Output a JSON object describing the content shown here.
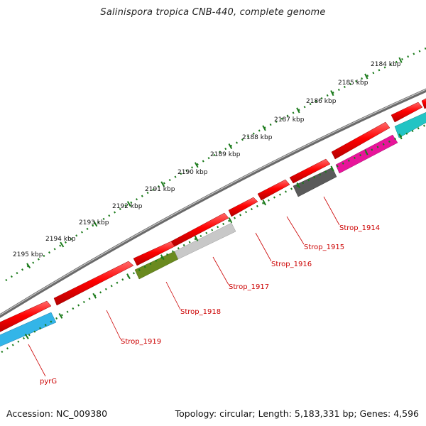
{
  "title": "Salinispora tropica CNB-440, complete genome",
  "footer": {
    "accession": "Accession: NC_009380",
    "summary": "Topology: circular; Length: 5,183,331 bp; Genes: 4,596"
  },
  "ruler": {
    "ticks": [
      "2184 kbp",
      "2185 kbp",
      "2186 kbp",
      "2187 kbp",
      "2188 kbp",
      "2189 kbp",
      "2190 kbp",
      "2191 kbp",
      "2192 kbp",
      "2193 kbp",
      "2194 kbp",
      "2195 kbp"
    ]
  },
  "gene_labels": [
    "pyrG",
    "Strop_1919",
    "Strop_1918",
    "Strop_1917",
    "Strop_1916",
    "Strop_1915",
    "Strop_1914"
  ],
  "colors": {
    "backbone": "#808080",
    "forward_cds": "#ff0000",
    "reverse_cds_cyan": "#33b5e8",
    "reverse_cds_olive": "#6a8a1f",
    "reverse_cds_gray": "#bdbdbd",
    "reverse_cds_dark": "#5a5a5a",
    "reverse_cds_magenta": "#e8149a",
    "reverse_cds_teal": "#22c4c4",
    "ruler": "#1a7a1a",
    "label": "#cc0000"
  }
}
